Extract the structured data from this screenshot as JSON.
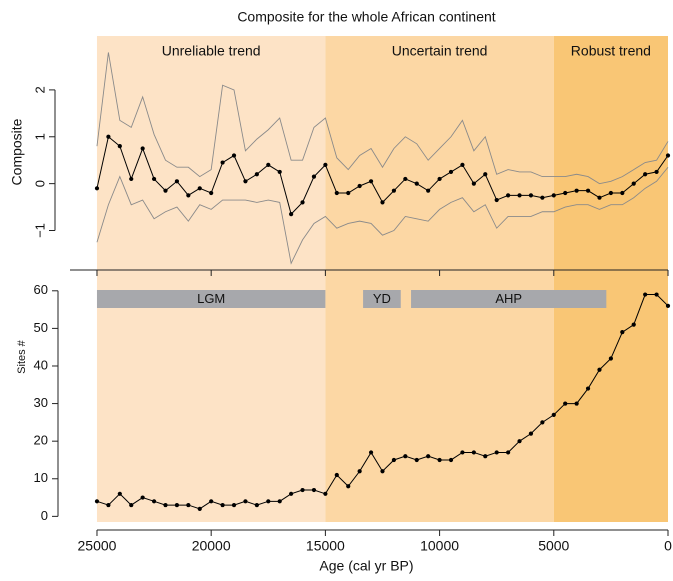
{
  "chart_data": [
    {
      "type": "line",
      "title": "Composite for the whole African continent",
      "ylabel": "Composite",
      "x": [
        25000,
        24500,
        24000,
        23500,
        23000,
        22500,
        22000,
        21500,
        21000,
        20500,
        20000,
        19500,
        19000,
        18500,
        18000,
        17500,
        17000,
        16500,
        16000,
        15500,
        15000,
        14500,
        14000,
        13500,
        13000,
        12500,
        12000,
        11500,
        11000,
        10500,
        10000,
        9500,
        9000,
        8500,
        8000,
        7500,
        7000,
        6500,
        6000,
        5500,
        5000,
        4500,
        4000,
        3500,
        3000,
        2500,
        2000,
        1500,
        1000,
        500,
        0
      ],
      "xlim": [
        26400,
        0
      ],
      "xticks": [
        25000,
        20000,
        15000,
        10000,
        5000,
        0
      ],
      "xtick_labels": false,
      "ylim": [
        -1.8,
        3.15
      ],
      "yticks": [
        {
          "value": -1,
          "label": "−1"
        },
        0,
        1,
        2
      ],
      "zones": [
        {
          "label": "Unreliable trend",
          "start": 25000,
          "end": 15000,
          "color": "#fde3c6"
        },
        {
          "label": "Uncertain trend",
          "start": 15000,
          "end": 5000,
          "color": "#fcd7a4"
        },
        {
          "label": "Robust trend",
          "start": 5000,
          "end": 0,
          "color": "#f9c675"
        }
      ],
      "series": [
        {
          "color": "#8a8a8a",
          "markers": false,
          "values": [
            0.8,
            2.8,
            1.35,
            1.2,
            1.85,
            1.05,
            0.5,
            0.35,
            0.35,
            0.15,
            0.3,
            2.1,
            2.0,
            0.7,
            0.95,
            1.15,
            1.4,
            0.5,
            0.5,
            1.2,
            1.4,
            0.55,
            0.3,
            0.6,
            0.75,
            0.35,
            0.75,
            1.0,
            0.85,
            0.5,
            0.75,
            1.0,
            1.35,
            0.7,
            1.0,
            0.2,
            0.3,
            0.25,
            0.25,
            0.15,
            0.15,
            0.15,
            0.2,
            0.15,
            0.0,
            0.05,
            0.15,
            0.3,
            0.45,
            0.5,
            0.9
          ]
        },
        {
          "color": "#8a8a8a",
          "markers": false,
          "values": [
            -1.25,
            -0.45,
            0.15,
            -0.45,
            -0.35,
            -0.75,
            -0.6,
            -0.5,
            -0.8,
            -0.45,
            -0.55,
            -0.35,
            -0.35,
            -0.35,
            -0.4,
            -0.35,
            -0.4,
            -1.7,
            -1.2,
            -0.85,
            -0.7,
            -0.95,
            -0.85,
            -0.8,
            -0.85,
            -1.1,
            -1.0,
            -0.7,
            -0.75,
            -0.8,
            -0.55,
            -0.4,
            -0.3,
            -0.6,
            -0.45,
            -0.95,
            -0.7,
            -0.7,
            -0.7,
            -0.6,
            -0.6,
            -0.5,
            -0.45,
            -0.45,
            -0.55,
            -0.45,
            -0.45,
            -0.3,
            -0.1,
            0.05,
            0.35
          ]
        },
        {
          "color": "#000000",
          "markers": true,
          "values": [
            -0.1,
            1.0,
            0.8,
            0.1,
            0.75,
            0.1,
            -0.15,
            0.05,
            -0.25,
            -0.1,
            -0.2,
            0.45,
            0.6,
            0.05,
            0.2,
            0.4,
            0.25,
            -0.65,
            -0.4,
            0.15,
            0.4,
            -0.2,
            -0.2,
            -0.05,
            0.05,
            -0.4,
            -0.15,
            0.1,
            0.0,
            -0.15,
            0.1,
            0.25,
            0.4,
            0.0,
            0.2,
            -0.35,
            -0.25,
            -0.25,
            -0.25,
            -0.3,
            -0.25,
            -0.2,
            -0.15,
            -0.15,
            -0.3,
            -0.2,
            -0.2,
            0.0,
            0.2,
            0.25,
            0.6
          ]
        }
      ]
    },
    {
      "type": "line",
      "xlabel": "Age (cal yr BP)",
      "ylabel": "Sites #",
      "x": [
        25000,
        24500,
        24000,
        23500,
        23000,
        22500,
        22000,
        21500,
        21000,
        20500,
        20000,
        19500,
        19000,
        18500,
        18000,
        17500,
        17000,
        16500,
        16000,
        15500,
        15000,
        14500,
        14000,
        13500,
        13000,
        12500,
        12000,
        11500,
        11000,
        10500,
        10000,
        9500,
        9000,
        8500,
        8000,
        7500,
        7000,
        6500,
        6000,
        5500,
        5000,
        4500,
        4000,
        3500,
        3000,
        2500,
        2000,
        1500,
        1000,
        500,
        0
      ],
      "xlim": [
        26400,
        0
      ],
      "xticks": [
        25000,
        20000,
        15000,
        10000,
        5000,
        0
      ],
      "ylim": [
        -1.5,
        65
      ],
      "yticks": [
        0,
        10,
        20,
        30,
        40,
        50,
        60
      ],
      "period_color": "#a7a8ac",
      "periods": [
        {
          "label": "LGM",
          "start": 25000,
          "end": 15000
        },
        {
          "label": "YD",
          "start": 13350,
          "end": 11700
        },
        {
          "label": "AHP",
          "start": 11250,
          "end": 2700
        }
      ],
      "series": [
        {
          "color": "#000000",
          "markers": true,
          "values": [
            4,
            3,
            6,
            3,
            5,
            4,
            3,
            3,
            3,
            2,
            4,
            3,
            3,
            4,
            3,
            4,
            4,
            6,
            7,
            7,
            6,
            11,
            8,
            12,
            17,
            12,
            15,
            16,
            15,
            16,
            15,
            15,
            17,
            17,
            16,
            17,
            17,
            20,
            22,
            25,
            27,
            30,
            30,
            34,
            39,
            42,
            49,
            51,
            59,
            59,
            56
          ]
        }
      ]
    }
  ]
}
